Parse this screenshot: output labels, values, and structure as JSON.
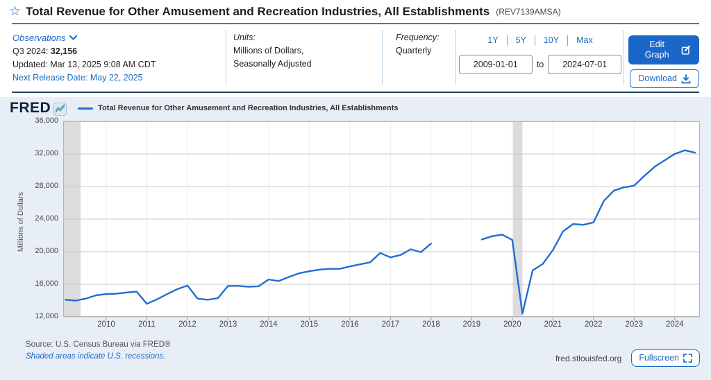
{
  "header": {
    "star_icon": "☆",
    "title": "Total Revenue for Other Amusement and Recreation Industries, All Establishments",
    "series_id": "(REV7139AMSA)"
  },
  "meta": {
    "observations": {
      "label": "Observations",
      "latest_period": "Q3 2024: ",
      "latest_value": "32,156",
      "updated": "Updated: Mar 13, 2025 9:08 AM CDT",
      "next_release": "Next Release Date: May 22, 2025"
    },
    "units": {
      "label": "Units:",
      "line1": "Millions of Dollars,",
      "line2": "Seasonally Adjusted"
    },
    "frequency": {
      "label": "Frequency:",
      "value": "Quarterly"
    },
    "range": {
      "buttons": [
        "1Y",
        "5Y",
        "10Y",
        "Max"
      ],
      "date_from": "2009-01-01",
      "to_label": "to",
      "date_to": "2024-07-01"
    },
    "actions": {
      "edit_graph": "Edit Graph",
      "download": "Download"
    }
  },
  "chart": {
    "logo": "FRED",
    "legend": "Total Revenue for Other Amusement and Recreation Industries, All Establishments",
    "source_line": "Source: U.S. Census Bureau via FRED®",
    "recession_note": "Shaded areas indicate U.S. recessions.",
    "site": "fred.stlouisfed.org",
    "fullscreen": "Fullscreen"
  },
  "chart_data": {
    "type": "line",
    "title": "Total Revenue for Other Amusement and Recreation Industries, All Establishments",
    "xlabel": "",
    "ylabel": "Millions of Dollars",
    "units": "Millions of Dollars, Seasonally Adjusted",
    "frequency": "Quarterly",
    "xlim": [
      2008.94,
      2024.62
    ],
    "ylim": [
      12000,
      36000
    ],
    "y_ticks": [
      12000,
      16000,
      20000,
      24000,
      28000,
      32000,
      36000
    ],
    "y_tick_labels": [
      "12,000",
      "16,000",
      "20,000",
      "24,000",
      "28,000",
      "32,000",
      "36,000"
    ],
    "x_ticks": [
      2010,
      2011,
      2012,
      2013,
      2014,
      2015,
      2016,
      2017,
      2018,
      2019,
      2020,
      2021,
      2022,
      2023,
      2024
    ],
    "grid": true,
    "legend_position": "top-left",
    "recession_color": "#dcdcdc",
    "recessions": [
      [
        2008.94,
        2009.37
      ],
      [
        2020.02,
        2020.25
      ]
    ],
    "series": [
      {
        "name": "Total Revenue for Other Amusement and Recreation Industries, All Establishments",
        "color": "#1f6fd0",
        "start": 2009.0,
        "step": 0.25,
        "note": "quarterly values 2009Q1-2024Q3, null = missing data gap 2018Q2-2019Q1",
        "values": [
          14100,
          14000,
          14250,
          14650,
          14800,
          14850,
          15000,
          15100,
          13600,
          14150,
          14800,
          15400,
          15850,
          14250,
          14100,
          14300,
          15800,
          15800,
          15700,
          15750,
          16600,
          16400,
          16900,
          17350,
          17600,
          17800,
          17900,
          17900,
          18200,
          18450,
          18700,
          19850,
          19300,
          19600,
          20300,
          19950,
          21000,
          null,
          null,
          null,
          null,
          21500,
          21900,
          22100,
          21450,
          12400,
          17700,
          18500,
          20200,
          22500,
          23400,
          23300,
          23600,
          26200,
          27500,
          27900,
          28100,
          29300,
          30400,
          31200,
          32000,
          32450,
          32156
        ]
      }
    ]
  }
}
